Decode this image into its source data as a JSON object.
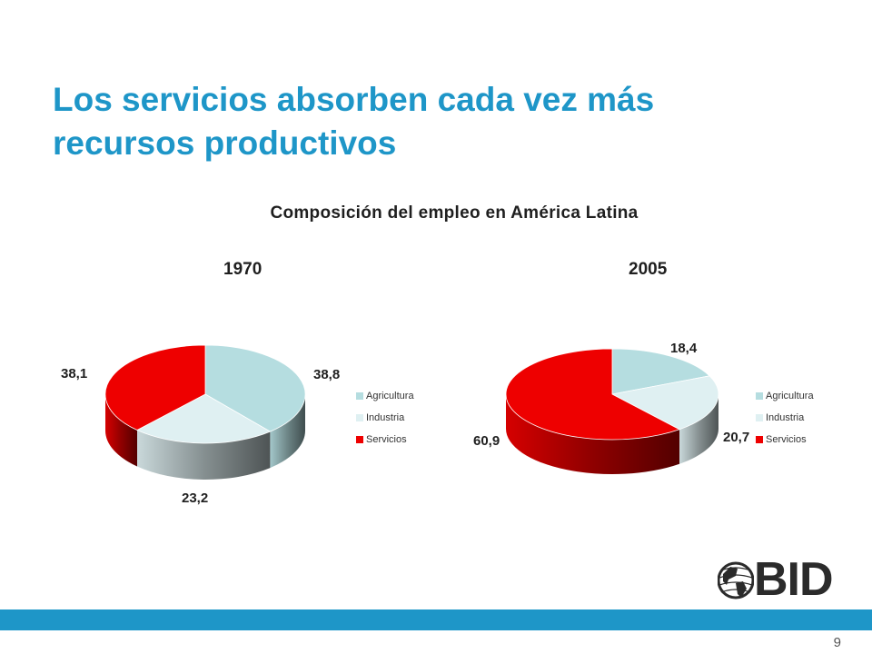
{
  "slide": {
    "title_line1": "Los servicios absorben cada vez más",
    "title_line2": "recursos productivos",
    "page_number": "9",
    "footer_color": "#1e96c8"
  },
  "logo": {
    "text": "BID",
    "icon": "globe-icon"
  },
  "chart_data": {
    "type": "pie",
    "title": "Composición del empleo en América Latina",
    "legend_position": "right",
    "categories": [
      "Agricultura",
      "Industria",
      "Servicios"
    ],
    "colors": [
      "#b5dde0",
      "#dff0f2",
      "#ee0000"
    ],
    "charts": [
      {
        "label": "1970",
        "values": [
          38.8,
          23.2,
          38.1
        ],
        "value_labels": [
          "38,8",
          "23,2",
          "38,1"
        ]
      },
      {
        "label": "2005",
        "values": [
          18.4,
          20.7,
          60.9
        ],
        "value_labels": [
          "18,4",
          "20,7",
          "60,9"
        ]
      }
    ]
  }
}
